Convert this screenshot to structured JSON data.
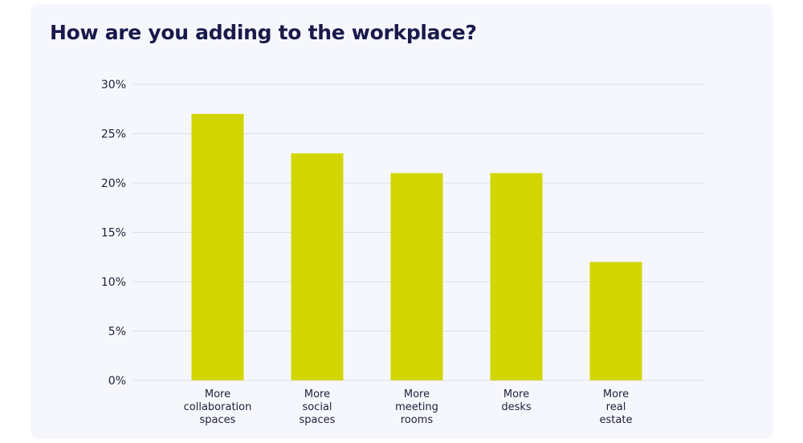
{
  "title": "How are you adding to the workplace?",
  "colors": {
    "background": "#f6f7fc",
    "bar": "#d2d600",
    "title": "#191a4b",
    "grid": "#dde1ee"
  },
  "chart_data": {
    "type": "bar",
    "title": "How are you adding to the workplace?",
    "categories": [
      [
        "More",
        "collaboration",
        "spaces"
      ],
      [
        "More",
        "social",
        "spaces"
      ],
      [
        "More",
        "meeting",
        "rooms"
      ],
      [
        "More",
        "desks"
      ],
      [
        "More",
        "real",
        "estate"
      ]
    ],
    "values": [
      27,
      23,
      21,
      21,
      12
    ],
    "unit": "%",
    "ylim": [
      0,
      30
    ],
    "yticks": [
      0,
      5,
      10,
      15,
      20,
      25,
      30
    ],
    "ytick_labels": [
      "0%",
      "5%",
      "10%",
      "15%",
      "20%",
      "25%",
      "30%"
    ],
    "grid": true,
    "legend": "none"
  }
}
